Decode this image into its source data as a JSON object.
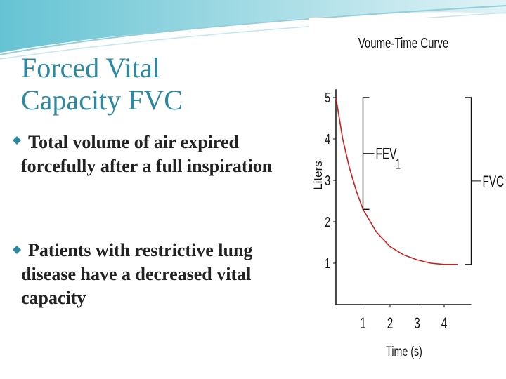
{
  "slide": {
    "title": "Forced Vital Capacity FVC",
    "bullets": [
      "Total volume of air expired  forcefully after a full inspiration",
      " Patients with restrictive lung disease have a decreased vital capacity"
    ]
  },
  "chart_data": {
    "type": "line",
    "title": "Voume-Time Curve",
    "x_label": "Time (s)",
    "y_label": "Liters",
    "x": [
      0,
      0.25,
      0.5,
      0.75,
      1,
      1.5,
      2,
      2.5,
      3,
      3.5,
      4,
      4.5
    ],
    "series": [
      {
        "color": "#cc1f1f",
        "values": [
          5,
          4,
          3.3,
          2.75,
          2.3,
          1.75,
          1.4,
          1.2,
          1.08,
          1,
          0.97,
          0.97
        ]
      }
    ],
    "xlim": [
      0,
      5
    ],
    "ylim": [
      0,
      5.2
    ],
    "xticks": [
      1,
      2,
      3,
      4
    ],
    "yticks": [
      1,
      2,
      3,
      4,
      5
    ],
    "brackets": [
      {
        "label": "FEV",
        "sub": "1",
        "from": 5,
        "to": 2.3,
        "x": 1,
        "side": "left"
      },
      {
        "label": "FVC",
        "from": 5,
        "to": 0.97,
        "x": 5,
        "side": "right"
      }
    ]
  }
}
